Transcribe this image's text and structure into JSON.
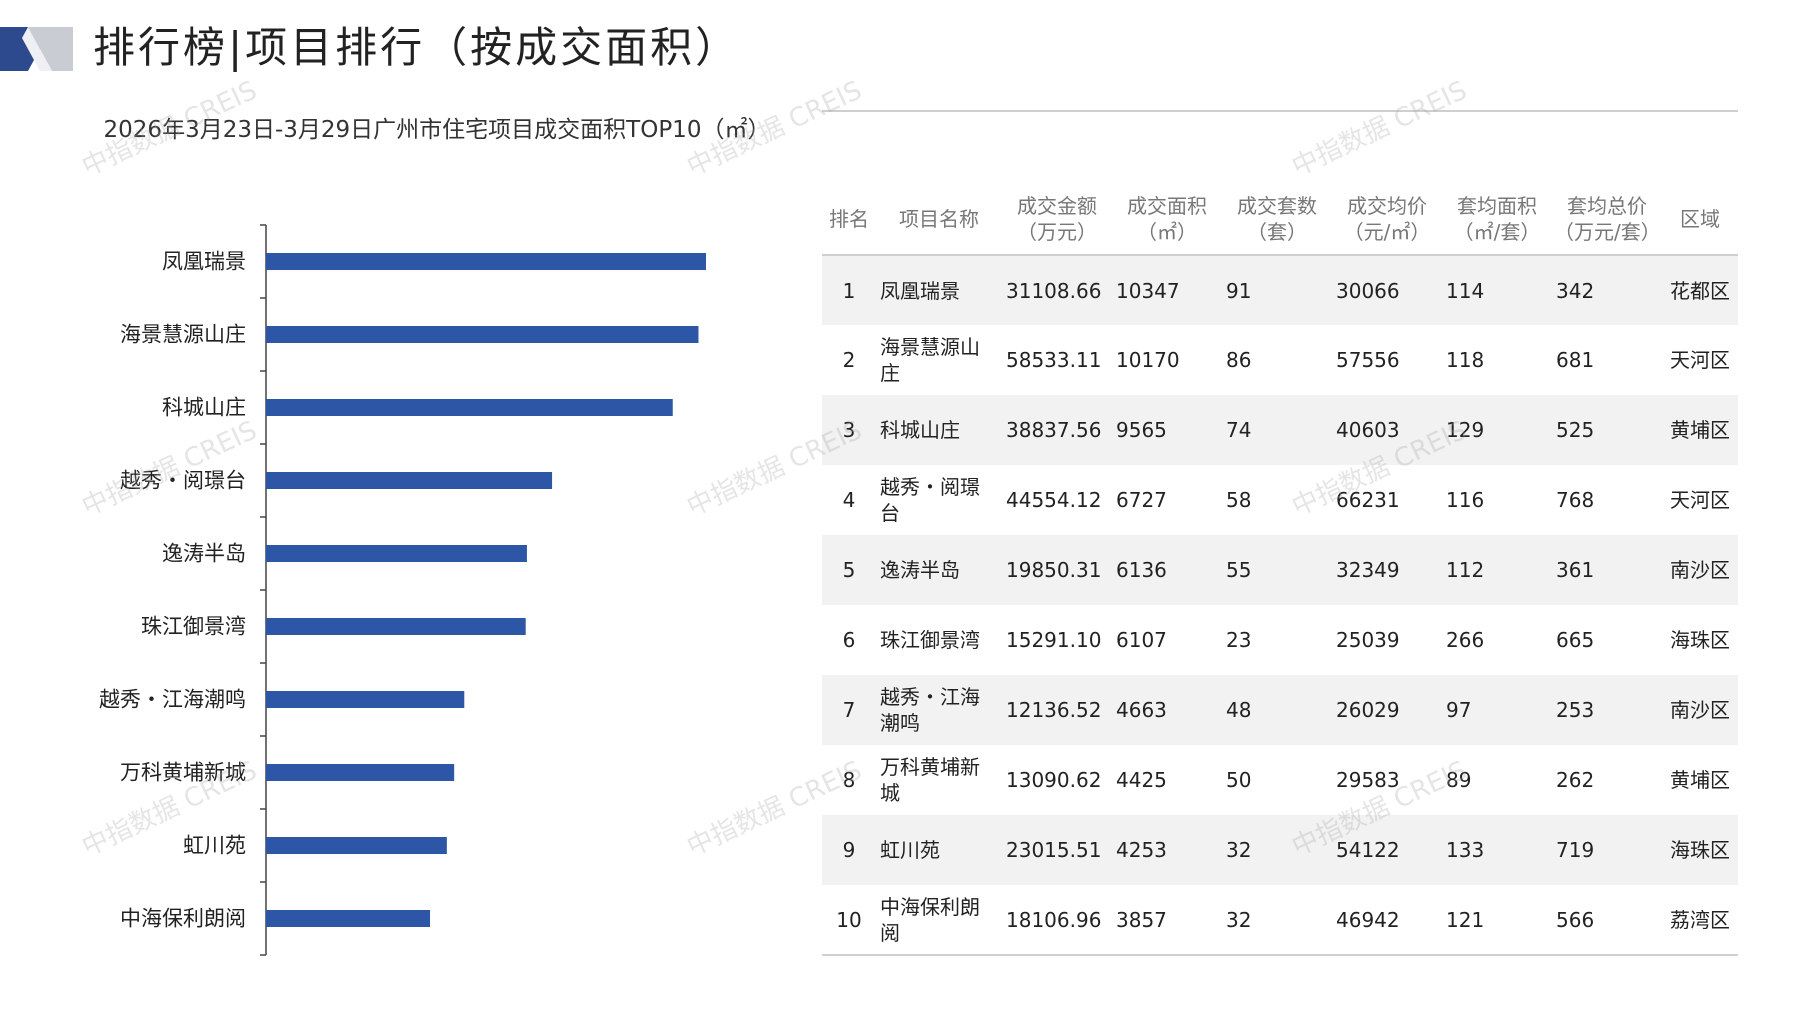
{
  "header": {
    "title": "排行榜|项目排行（按成交面积）"
  },
  "watermark": "中指数据 CREIS",
  "colors": {
    "bar": "#2E56A6",
    "accent": "#2E4A8E"
  },
  "chart_data": {
    "type": "bar",
    "orientation": "horizontal",
    "title": "2026年3月23日-3月29日广州市住宅项目成交面积TOP10（㎡）",
    "categories": [
      "凤凰瑞景",
      "海景慧源山庄",
      "科城山庄",
      "越秀・阅璟台",
      "逸涛半岛",
      "珠江御景湾",
      "越秀・江海潮鸣",
      "万科黄埔新城",
      "虹川苑",
      "中海保利朗阅"
    ],
    "values": [
      10347,
      10170,
      9565,
      6727,
      6136,
      6107,
      4663,
      4425,
      4253,
      3857
    ],
    "xlim": [
      0,
      10347
    ],
    "grid": false,
    "legend": "none"
  },
  "table": {
    "headers": [
      "排名",
      "项目名称",
      "成交金额\n（万元）",
      "成交面积\n（㎡）",
      "成交套数\n（套）",
      "成交均价\n（元/㎡）",
      "套均面积\n（㎡/套）",
      "套均总价\n（万元/套）",
      "区域"
    ],
    "rows": [
      [
        "1",
        "凤凰瑞景",
        "31108.66",
        "10347",
        "91",
        "30066",
        "114",
        "342",
        "花都区"
      ],
      [
        "2",
        "海景慧源山庄",
        "58533.11",
        "10170",
        "86",
        "57556",
        "118",
        "681",
        "天河区"
      ],
      [
        "3",
        "科城山庄",
        "38837.56",
        "9565",
        "74",
        "40603",
        "129",
        "525",
        "黄埔区"
      ],
      [
        "4",
        "越秀・阅璟台",
        "44554.12",
        "6727",
        "58",
        "66231",
        "116",
        "768",
        "天河区"
      ],
      [
        "5",
        "逸涛半岛",
        "19850.31",
        "6136",
        "55",
        "32349",
        "112",
        "361",
        "南沙区"
      ],
      [
        "6",
        "珠江御景湾",
        "15291.10",
        "6107",
        "23",
        "25039",
        "266",
        "665",
        "海珠区"
      ],
      [
        "7",
        "越秀・江海潮鸣",
        "12136.52",
        "4663",
        "48",
        "26029",
        "97",
        "253",
        "南沙区"
      ],
      [
        "8",
        "万科黄埔新城",
        "13090.62",
        "4425",
        "50",
        "29583",
        "89",
        "262",
        "黄埔区"
      ],
      [
        "9",
        "虹川苑",
        "23015.51",
        "4253",
        "32",
        "54122",
        "133",
        "719",
        "海珠区"
      ],
      [
        "10",
        "中海保利朗阅",
        "18106.96",
        "3857",
        "32",
        "46942",
        "121",
        "566",
        "荔湾区"
      ]
    ]
  }
}
